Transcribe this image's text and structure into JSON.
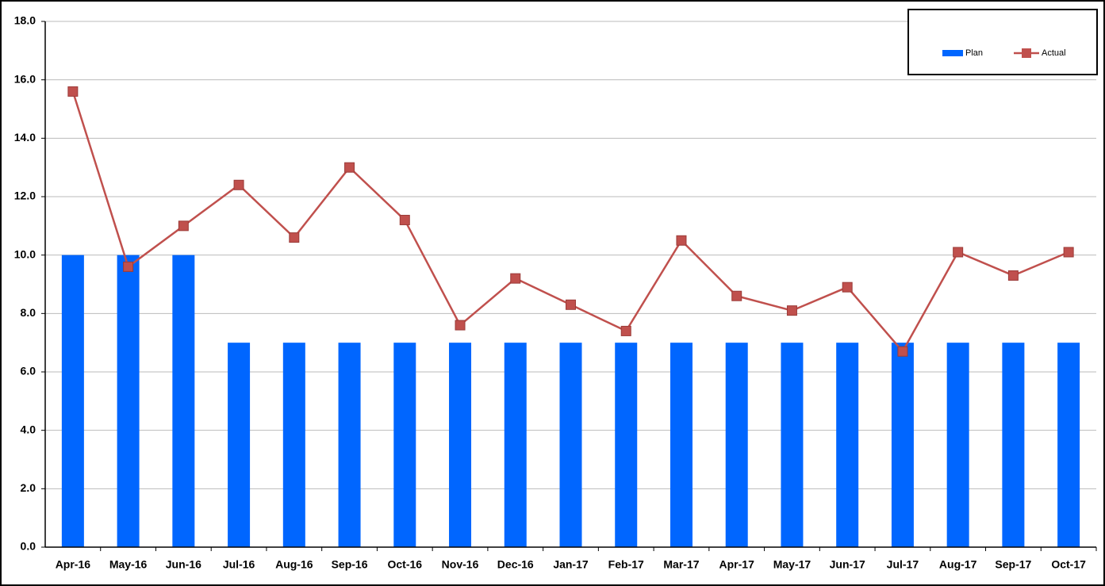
{
  "chart_data": {
    "type": "combo",
    "categories": [
      "Apr-16",
      "May-16",
      "Jun-16",
      "Jul-16",
      "Aug-16",
      "Sep-16",
      "Oct-16",
      "Nov-16",
      "Dec-16",
      "Jan-17",
      "Feb-17",
      "Mar-17",
      "Apr-17",
      "May-17",
      "Jun-17",
      "Jul-17",
      "Aug-17",
      "Sep-17",
      "Oct-17"
    ],
    "series": [
      {
        "name": "Plan",
        "type": "bar",
        "color": "#0066ff",
        "values": [
          10,
          10,
          10,
          7,
          7,
          7,
          7,
          7,
          7,
          7,
          7,
          7,
          7,
          7,
          7,
          7,
          7,
          7,
          7
        ]
      },
      {
        "name": "Actual",
        "type": "line",
        "color": "#c0504d",
        "values": [
          15.6,
          9.6,
          11.0,
          12.4,
          10.6,
          13.0,
          11.2,
          7.6,
          9.2,
          8.3,
          7.4,
          10.5,
          8.6,
          8.1,
          8.9,
          6.7,
          10.1,
          9.3,
          10.1
        ]
      }
    ],
    "ylim": [
      0,
      18
    ],
    "yticks": [
      {
        "value": 0,
        "label": "0.0"
      },
      {
        "value": 2,
        "label": "2.0"
      },
      {
        "value": 4,
        "label": "4.0"
      },
      {
        "value": 6,
        "label": "6.0"
      },
      {
        "value": 8,
        "label": "8.0"
      },
      {
        "value": 10,
        "label": "10.0"
      },
      {
        "value": 12,
        "label": "12.0"
      },
      {
        "value": 14,
        "label": "14.0"
      },
      {
        "value": 16,
        "label": "16.0"
      },
      {
        "value": 18,
        "label": "18.0"
      }
    ],
    "grid": true,
    "legend": "upper-right"
  }
}
